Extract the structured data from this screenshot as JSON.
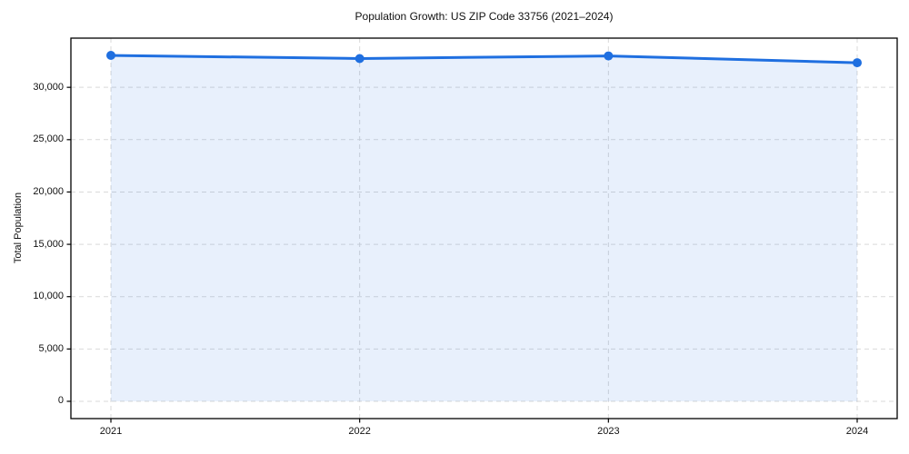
{
  "figure": {
    "background": "#ffffff"
  },
  "chart_data": {
    "type": "line",
    "title": "Population Growth: US ZIP Code 33756 (2021–2024)",
    "xlabel": "",
    "ylabel": "Total Population",
    "categories": [
      "2021",
      "2022",
      "2023",
      "2024"
    ],
    "series": [
      {
        "name": "Total Population",
        "values": [
          33050,
          32750,
          33000,
          32350
        ]
      }
    ],
    "ylim": [
      -1650,
      34700
    ],
    "yticks": [
      0,
      5000,
      10000,
      15000,
      20000,
      25000,
      30000
    ],
    "ytick_labels": [
      "0",
      "5,000",
      "10,000",
      "15,000",
      "20,000",
      "25,000",
      "30,000"
    ],
    "grid": true,
    "grid_style": "dashed",
    "legend": "none",
    "line_color": "#1f6fe0",
    "marker_color": "#1f6fe0",
    "fill_color": "#1f6fe0",
    "fill_opacity": 0.1,
    "fill_to": 0
  }
}
